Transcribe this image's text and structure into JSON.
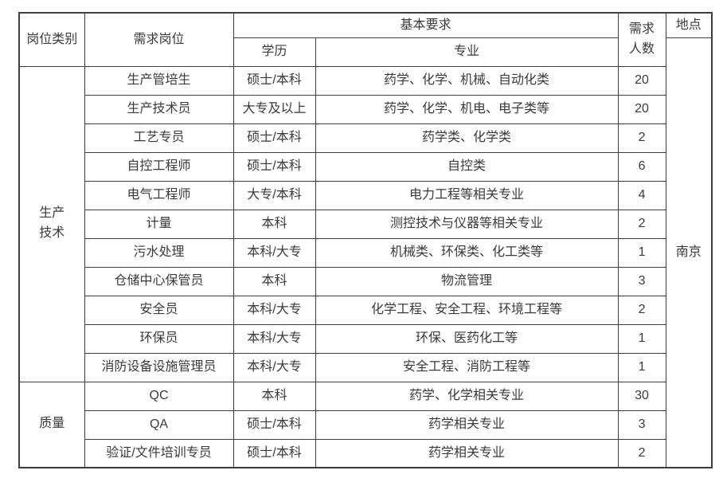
{
  "table": {
    "headers": {
      "category": "岗位类别",
      "position": "需求岗位",
      "requirements": "基本要求",
      "education": "学历",
      "major": "专业",
      "headcount": "需求人数",
      "location": "地点"
    },
    "location_value": "南京",
    "categories": [
      {
        "label": "生产技术",
        "row_span": 11
      },
      {
        "label": "质量",
        "row_span": 3
      }
    ],
    "rows": [
      {
        "position": "生产管培生",
        "education": "硕士/本科",
        "major": "药学、化学、机械、自动化类",
        "headcount": "20"
      },
      {
        "position": "生产技术员",
        "education": "大专及以上",
        "major": "药学、化学、机电、电子类等",
        "headcount": "20"
      },
      {
        "position": "工艺专员",
        "education": "硕士/本科",
        "major": "药学类、化学类",
        "headcount": "2"
      },
      {
        "position": "自控工程师",
        "education": "硕士/本科",
        "major": "自控类",
        "headcount": "6"
      },
      {
        "position": "电气工程师",
        "education": "大专/本科",
        "major": "电力工程等相关专业",
        "headcount": "4"
      },
      {
        "position": "计量",
        "education": "本科",
        "major": "测控技术与仪器等相关专业",
        "headcount": "2"
      },
      {
        "position": "污水处理",
        "education": "本科/大专",
        "major": "机械类、环保类、化工类等",
        "headcount": "1"
      },
      {
        "position": "仓储中心保管员",
        "education": "本科",
        "major": "物流管理",
        "headcount": "3"
      },
      {
        "position": "安全员",
        "education": "本科/大专",
        "major": "化学工程、安全工程、环境工程等",
        "headcount": "2"
      },
      {
        "position": "环保员",
        "education": "本科/大专",
        "major": "环保、医药化工等",
        "headcount": "1"
      },
      {
        "position": "消防设备设施管理员",
        "education": "本科/大专",
        "major": "安全工程、消防工程等",
        "headcount": "1"
      },
      {
        "position": "QC",
        "education": "本科",
        "major": "药学、化学相关专业",
        "headcount": "30"
      },
      {
        "position": "QA",
        "education": "硕士/本科",
        "major": "药学相关专业",
        "headcount": "3"
      },
      {
        "position": "验证/文件培训专员",
        "education": "硕士/本科",
        "major": "药学相关专业",
        "headcount": "2"
      }
    ]
  }
}
